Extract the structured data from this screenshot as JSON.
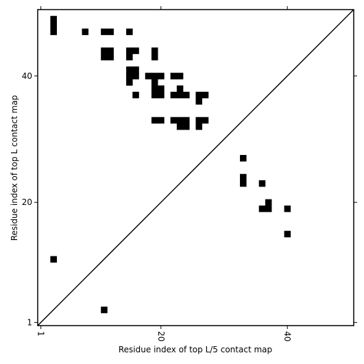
{
  "chart_data": {
    "type": "contact_map",
    "xlabel": "Residue index of top L/5 contact map",
    "ylabel": "Residue index of top L contact map",
    "xlim": [
      0.5,
      50.5
    ],
    "ylim": [
      0.5,
      50.5
    ],
    "xticks": [
      1,
      20,
      40
    ],
    "yticks": [
      1,
      20,
      40
    ],
    "color": "#000000",
    "x": [
      33,
      33,
      33,
      36,
      37,
      37,
      36,
      40,
      40,
      3,
      11,
      3,
      3,
      3,
      8,
      11,
      12,
      15,
      11,
      12,
      11,
      12,
      15,
      15,
      16,
      19,
      19,
      15,
      16,
      15,
      16,
      15,
      18,
      19,
      20,
      19,
      22,
      23,
      16,
      19,
      20,
      19,
      20,
      23,
      22,
      23,
      24,
      26,
      27,
      26,
      19,
      20,
      22,
      23,
      24,
      23,
      24,
      26,
      27,
      26
    ],
    "values": [
      27,
      23,
      24,
      23,
      20,
      19,
      19,
      19,
      15,
      11,
      3,
      47,
      48,
      49,
      47,
      47,
      47,
      47,
      43,
      43,
      44,
      44,
      43,
      44,
      44,
      43,
      44,
      41,
      41,
      40,
      40,
      39,
      40,
      40,
      40,
      39,
      40,
      40,
      37,
      38,
      38,
      37,
      37,
      38,
      37,
      37,
      37,
      37,
      37,
      36,
      33,
      33,
      33,
      33,
      33,
      32,
      32,
      33,
      33,
      32
    ]
  }
}
